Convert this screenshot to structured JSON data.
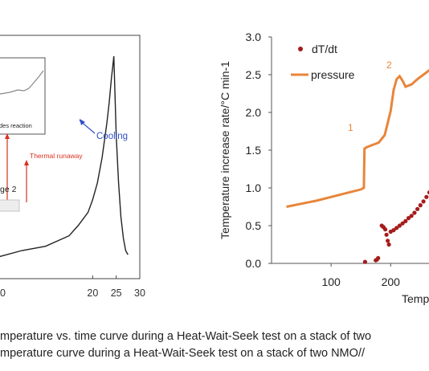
{
  "chart_data": [
    {
      "type": "line",
      "xlim": [
        0,
        30
      ],
      "xticks": [
        "20",
        "25",
        "30"
      ],
      "inset_label": "des reaction",
      "annotations": [
        {
          "text": "Cooling",
          "color": "#2f4fc7"
        },
        {
          "text": "Thermal runaway",
          "color": "#d9301e"
        },
        {
          "text": "ge 2",
          "color": "#222222"
        }
      ],
      "series": [
        {
          "x": [
            0,
            5,
            10,
            15,
            17,
            19,
            20,
            21,
            22,
            23,
            23.5,
            24,
            24.3,
            24.5,
            25,
            25.5,
            26,
            26.5,
            27,
            27.5
          ],
          "y": [
            0.05,
            0.08,
            0.1,
            0.15,
            0.2,
            0.26,
            0.32,
            0.4,
            0.52,
            0.68,
            0.78,
            0.9,
            0.96,
            1.0,
            0.62,
            0.4,
            0.24,
            0.14,
            0.08,
            0.06
          ],
          "color": "#222222"
        }
      ],
      "grid": false
    },
    {
      "type": "scatter",
      "xlabel": "Tempe",
      "ylabel": "Temperature increase rate/°C min-1",
      "ylim": [
        0,
        3.0
      ],
      "xlim": [
        0,
        290
      ],
      "xticks": [
        "100",
        "200"
      ],
      "yticks": [
        "0.0",
        "0.5",
        "1.0",
        "1.5",
        "2.0",
        "2.5",
        "3.0"
      ],
      "legend": [
        {
          "label": "dT/dt",
          "color": "#a51c1c"
        },
        {
          "label": "pressure",
          "color": "#e8853a"
        }
      ],
      "annotations": [
        {
          "text": "1",
          "color": "#e8853a"
        },
        {
          "text": "2",
          "color": "#e8853a"
        }
      ],
      "series": [
        {
          "type": "line",
          "color": "#e8853a",
          "x": [
            25,
            50,
            75,
            100,
            125,
            150,
            155,
            156,
            160,
            170,
            180,
            190,
            200,
            205,
            210,
            215,
            220,
            225,
            235,
            245,
            255,
            265,
            275,
            285
          ],
          "y": [
            0.75,
            0.79,
            0.83,
            0.88,
            0.93,
            0.98,
            1.0,
            1.52,
            1.54,
            1.57,
            1.6,
            1.7,
            2.02,
            2.3,
            2.44,
            2.48,
            2.42,
            2.34,
            2.37,
            2.44,
            2.5,
            2.56,
            2.6,
            2.62
          ]
        },
        {
          "type": "scatter",
          "color": "#a51c1c",
          "x": [
            157,
            175,
            177,
            179,
            185,
            188,
            191,
            193,
            195,
            197,
            200,
            205,
            210,
            215,
            220,
            225,
            230,
            235,
            240,
            245,
            250,
            255,
            260,
            265,
            270,
            275,
            280,
            284,
            288
          ],
          "y": [
            0.02,
            0.04,
            0.05,
            0.07,
            0.5,
            0.48,
            0.45,
            0.38,
            0.3,
            0.25,
            0.42,
            0.44,
            0.47,
            0.5,
            0.53,
            0.56,
            0.6,
            0.63,
            0.67,
            0.72,
            0.77,
            0.82,
            0.88,
            0.94,
            1.0,
            1.07,
            1.1,
            1.2,
            1.26
          ]
        }
      ],
      "grid": false
    }
  ],
  "captions": [
    "mperature vs. time curve during a Heat-Wait-Seek test on a stack of two",
    "mperature curve during a Heat-Wait-Seek test on a stack of two NMO//"
  ]
}
